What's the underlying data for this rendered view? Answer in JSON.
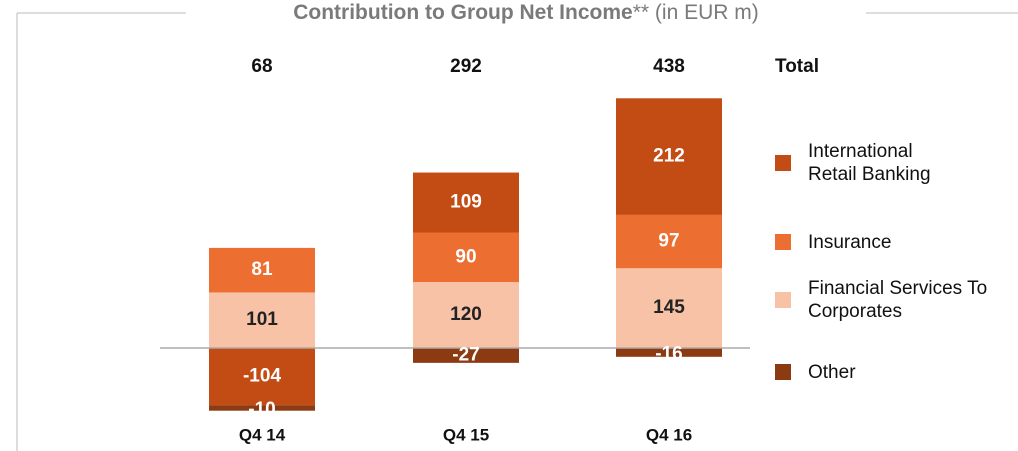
{
  "chart_data": {
    "type": "stacked-bar",
    "title": "Contribution to Group Net Income",
    "title_note": "**",
    "unit": "(in EUR m)",
    "categories": [
      "Q4 14",
      "Q4 15",
      "Q4 16"
    ],
    "totals_label": "Total",
    "totals": [
      68,
      292,
      438
    ],
    "ylim": [
      -120,
      460
    ],
    "series": [
      {
        "name": "International Retail Banking",
        "color": "#c34c15",
        "label_color": "#ffffff",
        "values": [
          -104,
          109,
          212
        ]
      },
      {
        "name": "Insurance",
        "color": "#ec6e31",
        "label_color": "#ffffff",
        "values": [
          81,
          90,
          97
        ]
      },
      {
        "name": "Financial Services To Corporates",
        "color": "#f8c2a7",
        "label_color": "#222222",
        "values": [
          101,
          120,
          145
        ]
      },
      {
        "name": "Other",
        "color": "#8c3a12",
        "label_color": "#ffffff",
        "values": [
          -10,
          -27,
          -16
        ]
      }
    ]
  }
}
